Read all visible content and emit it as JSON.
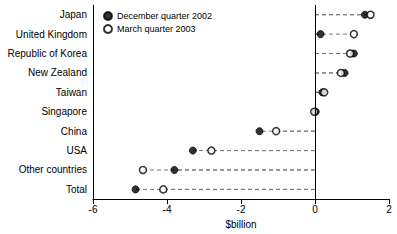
{
  "chart_data": {
    "type": "dot",
    "orientation": "horizontal",
    "x_label": "$billion",
    "categories": [
      "Japan",
      "United Kingdom",
      "Republic of Korea",
      "New Zealand",
      "Taiwan",
      "Singapore",
      "China",
      "USA",
      "Other countries",
      "Total"
    ],
    "series": [
      {
        "name": "December quarter 2002",
        "color": "#000000",
        "marker": "filled",
        "values": [
          1.35,
          0.15,
          1.05,
          0.8,
          0.2,
          0.02,
          -1.5,
          -3.3,
          -3.8,
          -4.85
        ]
      },
      {
        "name": "March quarter 2003",
        "color": "#000000",
        "marker": "hollow",
        "values": [
          1.5,
          1.05,
          0.95,
          0.7,
          0.25,
          -0.02,
          -1.05,
          -2.8,
          -4.65,
          -4.1
        ]
      }
    ],
    "xlim": [
      -6,
      2
    ],
    "xticks": [
      -6,
      -4,
      -2,
      0,
      2
    ],
    "grid": false,
    "legend": "top-left"
  }
}
